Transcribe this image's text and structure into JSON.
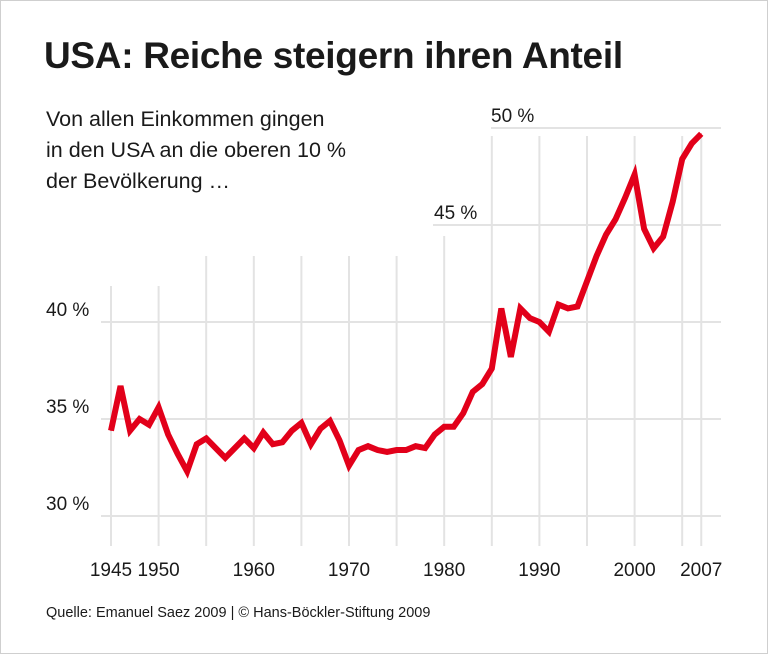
{
  "header": {
    "title": "USA: Reiche steigern ihren Anteil",
    "subtitle": "Von allen Einkommen gingen\nin den USA an die oberen 10 %\nder Bevölkerung …"
  },
  "footer": {
    "source": "Quelle: Emanuel Saez 2009 | © Hans-Böckler-Stiftung 2009"
  },
  "chart_data": {
    "type": "line",
    "title": "USA: Reiche steigern ihren Anteil",
    "ylim": [
      30,
      50
    ],
    "xlim": [
      1945,
      2007
    ],
    "grid": true,
    "line_color": "#e2001a",
    "x_tick_labels": [
      "1945",
      "1950",
      "1960",
      "1970",
      "1980",
      "1990",
      "2000",
      "2007"
    ],
    "x_ticks": [
      1945,
      1950,
      1960,
      1970,
      1980,
      1990,
      2000,
      2007
    ],
    "y_tick_labels": [
      "30 %",
      "35 %",
      "40 %",
      "45 %",
      "50 %"
    ],
    "y_ticks": [
      30,
      35,
      40,
      45,
      50
    ],
    "x": [
      1945,
      1946,
      1947,
      1948,
      1949,
      1950,
      1951,
      1952,
      1953,
      1954,
      1955,
      1956,
      1957,
      1958,
      1959,
      1960,
      1961,
      1962,
      1963,
      1964,
      1965,
      1966,
      1967,
      1968,
      1969,
      1970,
      1971,
      1972,
      1973,
      1974,
      1975,
      1976,
      1977,
      1978,
      1979,
      1980,
      1981,
      1982,
      1983,
      1984,
      1985,
      1986,
      1987,
      1988,
      1989,
      1990,
      1991,
      1992,
      1993,
      1994,
      1995,
      1996,
      1997,
      1998,
      1999,
      2000,
      2001,
      2002,
      2003,
      2004,
      2005,
      2006,
      2007
    ],
    "values": [
      34.4,
      36.7,
      34.4,
      35.0,
      34.7,
      35.6,
      34.2,
      33.2,
      32.3,
      33.7,
      34.0,
      33.5,
      33.0,
      33.5,
      34.0,
      33.5,
      34.3,
      33.7,
      33.8,
      34.4,
      34.8,
      33.7,
      34.5,
      34.9,
      33.9,
      32.6,
      33.4,
      33.6,
      33.4,
      33.3,
      33.4,
      33.4,
      33.6,
      33.5,
      34.2,
      34.6,
      34.6,
      35.3,
      36.4,
      36.8,
      37.6,
      40.7,
      38.2,
      40.7,
      40.2,
      40.0,
      39.5,
      40.9,
      40.7,
      40.8,
      42.1,
      43.4,
      44.5,
      45.3,
      46.4,
      47.6,
      44.8,
      43.8,
      44.4,
      46.2,
      48.4,
      49.2,
      49.7
    ]
  }
}
